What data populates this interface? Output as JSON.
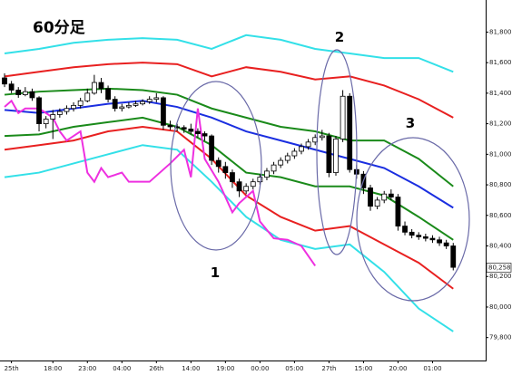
{
  "chart_data": {
    "type": "candlestick",
    "title": "60分足",
    "xlim": [
      -0.66,
      69.7
    ],
    "ylim": [
      79650,
      82010
    ],
    "xticks": [
      {
        "value": 1,
        "label": "25th"
      },
      {
        "value": 7,
        "label": "18:00"
      },
      {
        "value": 12,
        "label": "23:00"
      },
      {
        "value": 17,
        "label": "04:00"
      },
      {
        "value": 22,
        "label": "26th"
      },
      {
        "value": 27,
        "label": "14:00"
      },
      {
        "value": 32,
        "label": "19:00"
      },
      {
        "value": 37,
        "label": "00:00"
      },
      {
        "value": 42,
        "label": "05:00"
      },
      {
        "value": 47,
        "label": "27th"
      },
      {
        "value": 52,
        "label": "15:00"
      },
      {
        "value": 57,
        "label": "20:00"
      },
      {
        "value": 62,
        "label": "01:00"
      }
    ],
    "yticks": [
      {
        "value": 81800,
        "label": "81,800"
      },
      {
        "value": 81600,
        "label": "81,600"
      },
      {
        "value": 81400,
        "label": "81,400"
      },
      {
        "value": 81200,
        "label": "81,200"
      },
      {
        "value": 81000,
        "label": "81,000"
      },
      {
        "value": 80800,
        "label": "80,800"
      },
      {
        "value": 80600,
        "label": "80,600"
      },
      {
        "value": 80400,
        "label": "80,400"
      },
      {
        "value": 80200,
        "label": "80,200"
      },
      {
        "value": 80000,
        "label": "80,000"
      },
      {
        "value": 79800,
        "label": "79,800"
      }
    ],
    "ohlc": [
      [
        81500,
        81530,
        81440,
        81460
      ],
      [
        81460,
        81480,
        81400,
        81420
      ],
      [
        81420,
        81440,
        81370,
        81390
      ],
      [
        81390,
        81440,
        81380,
        81410
      ],
      [
        81410,
        81430,
        81350,
        81370
      ],
      [
        81370,
        81380,
        81150,
        81200
      ],
      [
        81200,
        81250,
        81170,
        81230
      ],
      [
        81230,
        81290,
        81100,
        81260
      ],
      [
        81260,
        81300,
        81240,
        81280
      ],
      [
        81280,
        81320,
        81260,
        81300
      ],
      [
        81300,
        81340,
        81280,
        81320
      ],
      [
        81320,
        81370,
        81300,
        81350
      ],
      [
        81350,
        81430,
        81340,
        81400
      ],
      [
        81400,
        81520,
        81390,
        81470
      ],
      [
        81470,
        81500,
        81400,
        81430
      ],
      [
        81430,
        81450,
        81340,
        81360
      ],
      [
        81360,
        81380,
        81280,
        81300
      ],
      [
        81300,
        81330,
        81280,
        81310
      ],
      [
        81310,
        81340,
        81300,
        81320
      ],
      [
        81320,
        81350,
        81310,
        81330
      ],
      [
        81330,
        81360,
        81320,
        81345
      ],
      [
        81345,
        81380,
        81330,
        81360
      ],
      [
        81360,
        81400,
        81340,
        81370
      ],
      [
        81370,
        81380,
        81160,
        81190
      ],
      [
        81190,
        81220,
        81160,
        81180
      ],
      [
        81180,
        81200,
        81150,
        81175
      ],
      [
        81175,
        81190,
        81140,
        81165
      ],
      [
        81165,
        81200,
        81130,
        81150
      ],
      [
        81150,
        81170,
        81110,
        81135
      ],
      [
        81135,
        81150,
        81090,
        81120
      ],
      [
        81120,
        81130,
        80930,
        80960
      ],
      [
        80960,
        80980,
        80880,
        80920
      ],
      [
        80920,
        80950,
        80840,
        80880
      ],
      [
        80880,
        80900,
        80780,
        80820
      ],
      [
        80820,
        80840,
        80720,
        80760
      ],
      [
        80760,
        80810,
        80740,
        80790
      ],
      [
        80790,
        80840,
        80770,
        80820
      ],
      [
        80820,
        80870,
        80800,
        80850
      ],
      [
        80850,
        80910,
        80830,
        80890
      ],
      [
        80890,
        80950,
        80870,
        80930
      ],
      [
        80930,
        80980,
        80910,
        80960
      ],
      [
        80960,
        81010,
        80940,
        80990
      ],
      [
        80990,
        81040,
        80970,
        81020
      ],
      [
        81020,
        81070,
        81000,
        81050
      ],
      [
        81050,
        81100,
        81030,
        81080
      ],
      [
        81080,
        81130,
        81060,
        81110
      ],
      [
        81110,
        81160,
        81090,
        81120
      ],
      [
        81120,
        81140,
        80850,
        80880
      ],
      [
        80880,
        81120,
        80860,
        81100
      ],
      [
        81100,
        81420,
        81080,
        81380
      ],
      [
        81380,
        81400,
        80880,
        80900
      ],
      [
        80900,
        80930,
        80840,
        80870
      ],
      [
        80870,
        80890,
        80740,
        80780
      ],
      [
        80780,
        80800,
        80630,
        80660
      ],
      [
        80660,
        80720,
        80640,
        80700
      ],
      [
        80700,
        80760,
        80680,
        80740
      ],
      [
        80740,
        80770,
        80700,
        80720
      ],
      [
        80720,
        80740,
        80500,
        80530
      ],
      [
        80530,
        80560,
        80470,
        80490
      ],
      [
        80490,
        80510,
        80450,
        80470
      ],
      [
        80470,
        80490,
        80440,
        80460
      ],
      [
        80460,
        80480,
        80430,
        80450
      ],
      [
        80450,
        80470,
        80420,
        80440
      ],
      [
        80440,
        80460,
        80400,
        80420
      ],
      [
        80420,
        80440,
        80380,
        80400
      ],
      [
        80400,
        80420,
        80240,
        80260
      ]
    ],
    "series": [
      {
        "color": "#33e0e8",
        "x": [
          0,
          5,
          10,
          15,
          20,
          25,
          30,
          35,
          40,
          45,
          50,
          55,
          60,
          65
        ],
        "values": [
          81660,
          81690,
          81730,
          81750,
          81760,
          81750,
          81690,
          81780,
          81750,
          81690,
          81660,
          81630,
          81630,
          81540
        ]
      },
      {
        "color": "#e82020",
        "x": [
          0,
          5,
          10,
          15,
          20,
          25,
          30,
          35,
          40,
          45,
          50,
          55,
          60,
          65
        ],
        "values": [
          81510,
          81540,
          81570,
          81590,
          81600,
          81590,
          81510,
          81570,
          81540,
          81490,
          81510,
          81450,
          81360,
          81240
        ]
      },
      {
        "color": "#1a8a1a",
        "x": [
          0,
          5,
          10,
          15,
          20,
          25,
          30,
          35,
          40,
          45,
          50,
          55,
          60,
          65
        ],
        "values": [
          81390,
          81410,
          81420,
          81430,
          81420,
          81390,
          81300,
          81240,
          81180,
          81150,
          81090,
          81090,
          80970,
          80790
        ]
      },
      {
        "color": "#1a2ee0",
        "x": [
          0,
          5,
          10,
          15,
          20,
          25,
          30,
          35,
          40,
          45,
          50,
          55,
          60,
          65
        ],
        "values": [
          81290,
          81270,
          81300,
          81330,
          81350,
          81310,
          81240,
          81150,
          81090,
          81030,
          80970,
          80910,
          80790,
          80650
        ]
      },
      {
        "color": "#1a8a1a",
        "x": [
          0,
          5,
          10,
          15,
          20,
          25,
          30,
          35,
          40,
          45,
          50,
          55,
          60,
          65
        ],
        "values": [
          81120,
          81130,
          81180,
          81210,
          81240,
          81180,
          81060,
          80880,
          80850,
          80790,
          80790,
          80730,
          80590,
          80440
        ]
      },
      {
        "color": "#e82020",
        "x": [
          0,
          5,
          10,
          15,
          20,
          25,
          30,
          35,
          40,
          45,
          50,
          55,
          60,
          65
        ],
        "values": [
          81030,
          81060,
          81090,
          81150,
          81180,
          81150,
          80970,
          80730,
          80590,
          80500,
          80530,
          80410,
          80290,
          80120
        ]
      },
      {
        "color": "#33e0e8",
        "x": [
          0,
          5,
          10,
          15,
          20,
          25,
          30,
          35,
          40,
          45,
          50,
          55,
          60,
          65
        ],
        "values": [
          80850,
          80880,
          80940,
          81000,
          81060,
          81030,
          80820,
          80590,
          80440,
          80380,
          80410,
          80230,
          79990,
          79840
        ]
      },
      {
        "color": "#ee30e0",
        "x": [
          0,
          1,
          2,
          3,
          5,
          7,
          8,
          9,
          11,
          12,
          13,
          14,
          15,
          17,
          18,
          21,
          24,
          26,
          27,
          28,
          29,
          31,
          33,
          34,
          36,
          37,
          39,
          41,
          43,
          45
        ],
        "values": [
          81310,
          81350,
          81270,
          81300,
          81300,
          81240,
          81150,
          81090,
          81150,
          80880,
          80820,
          80910,
          80850,
          80880,
          80820,
          80820,
          80940,
          81030,
          80850,
          81300,
          80970,
          80820,
          80620,
          80680,
          80760,
          80560,
          80450,
          80440,
          80400,
          80270
        ]
      }
    ],
    "last_price": {
      "value": 80258,
      "label": "80,258"
    },
    "annotations": [
      "1",
      "2",
      "3"
    ]
  }
}
